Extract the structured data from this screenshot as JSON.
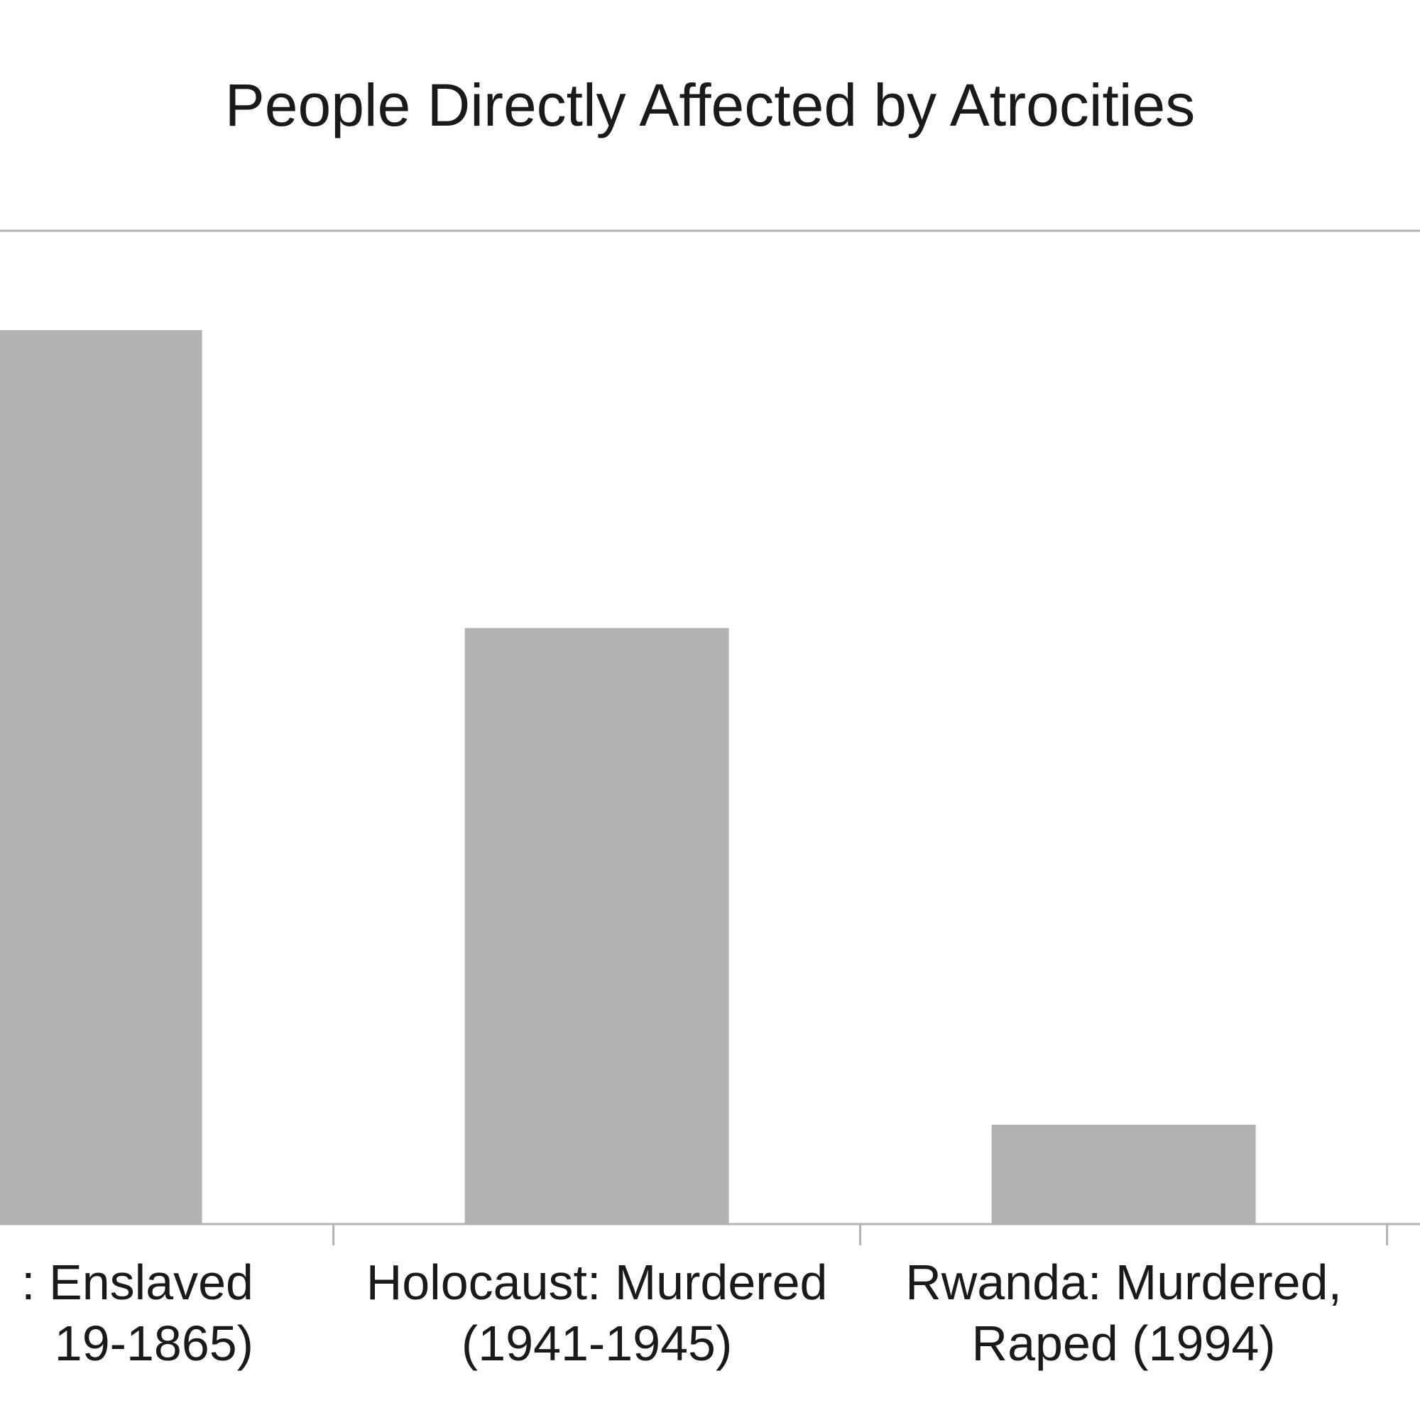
{
  "chart_data": {
    "type": "bar",
    "title": "People Directly Affected by Atrocities",
    "categories": [
      ": Enslaved\n19-1865)",
      "Holocaust: Murdered\n(1941-1945)",
      "Rwanda: Murdered,\nRaped (1994)"
    ],
    "values": [
      9000000,
      6000000,
      1000000
    ],
    "color": "#b2b2b2",
    "ylim": [
      0,
      10000000
    ]
  }
}
